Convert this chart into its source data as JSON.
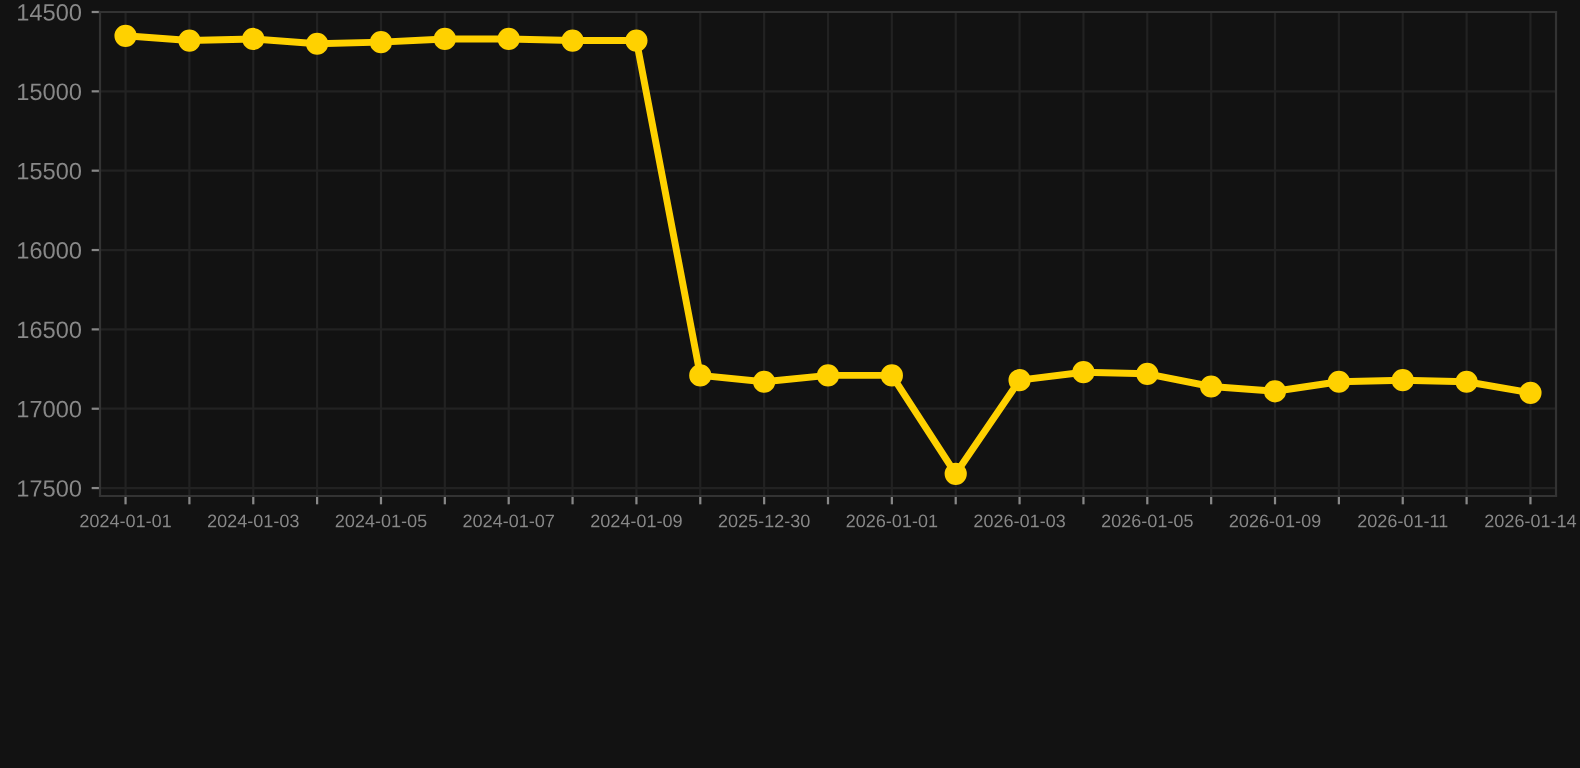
{
  "chart_data": {
    "type": "line",
    "categories": [
      "2024-01-01",
      null,
      "2024-01-03",
      null,
      "2024-01-05",
      null,
      "2024-01-07",
      null,
      "2024-01-09",
      null,
      "2025-12-30",
      null,
      "2026-01-01",
      null,
      "2026-01-03",
      null,
      "2026-01-05",
      null,
      "2026-01-09",
      null,
      "2026-01-11",
      null,
      "2026-01-14"
    ],
    "series": [
      {
        "color": "#ffd100",
        "values": [
          14650,
          14680,
          14670,
          14700,
          14690,
          14670,
          14670,
          14680,
          14680,
          16790,
          16830,
          16790,
          16790,
          17410,
          16820,
          16770,
          16780,
          16860,
          16890,
          16830,
          16820,
          16830,
          16900
        ]
      }
    ],
    "ylim": [
      17550,
      14500
    ],
    "yticks": [
      14500,
      15000,
      15500,
      16000,
      16500,
      17000,
      17500
    ],
    "grid": true,
    "marker": "circle",
    "line_style": "solid"
  }
}
